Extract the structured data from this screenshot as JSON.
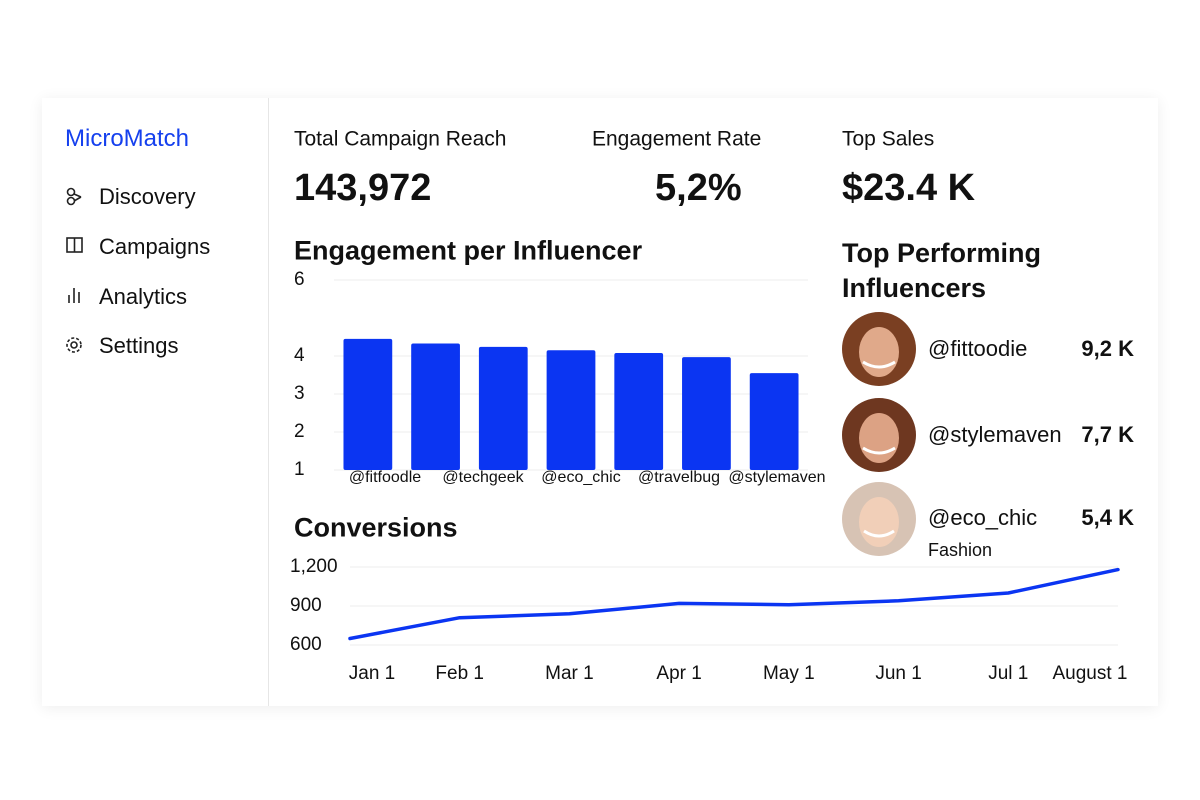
{
  "sidebar": {
    "brand": "MicroMatch",
    "nav": [
      "Discovery",
      "Campaigns",
      "Analytics",
      "Settings"
    ]
  },
  "kpis": [
    {
      "label": "Total Campaign Reach",
      "value": "143,972"
    },
    {
      "label": "Engagement Rate",
      "value": "5,2%"
    },
    {
      "label": "Top Sales",
      "value": "$23.4 K"
    }
  ],
  "chart_data": [
    {
      "type": "bar",
      "title": "Engagement per Influencer",
      "categories": [
        "@fitfoodle",
        "@techgeek",
        "@eco_chic",
        "@travelbug",
        "@stylemaven",
        null,
        null
      ],
      "values": [
        4.45,
        4.33,
        4.24,
        4.15,
        4.08,
        3.97,
        3.55
      ],
      "color": "#0b35f2",
      "ylim": [
        1,
        6
      ],
      "yticks": [
        1,
        2,
        3,
        4,
        6
      ],
      "grid": true
    },
    {
      "type": "line",
      "title": "Conversions",
      "categories": [
        "Jan 1",
        "Feb 1",
        "Mar 1",
        "Apr 1",
        "May 1",
        "Jun 1",
        "Jul 1",
        "August 1"
      ],
      "values": [
        650,
        810,
        840,
        920,
        910,
        940,
        1000,
        1180
      ],
      "color": "#0b35f2",
      "ylim": [
        600,
        1200
      ],
      "yticks": [
        600,
        900,
        {
          "value": 1200,
          "label": "1,200"
        }
      ],
      "grid": true
    }
  ],
  "top_influencers": {
    "title": "Top Performing Influencers",
    "items": [
      {
        "handle": "@fittoodie",
        "value": "9,2 K"
      },
      {
        "handle": "@stylemaven",
        "value": "7,7 K"
      },
      {
        "handle": "@eco_chic",
        "value": "5,4 K",
        "category": "Fashion"
      }
    ]
  }
}
